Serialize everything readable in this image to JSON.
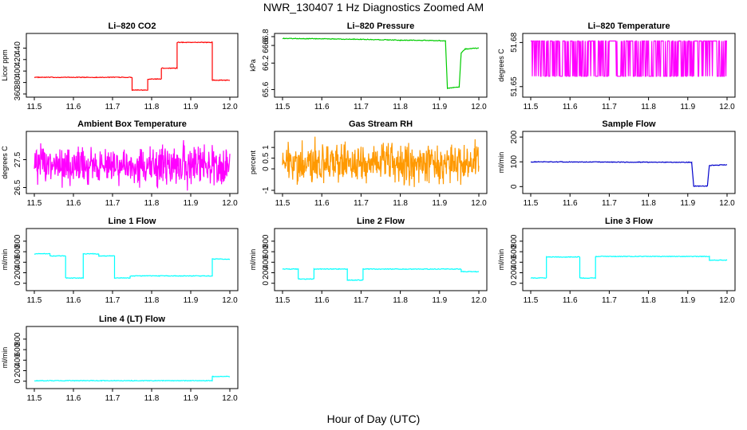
{
  "figure": {
    "title": "NWR_130407  1 Hz Diagnostics Zoomed AM",
    "xlabel": "Hour of Day (UTC)"
  },
  "chart_data": [
    {
      "type": "line",
      "title": "Li–820 CO2",
      "ylabel": "Licor ppm",
      "color": "#ff0000",
      "xlim": [
        11.5,
        12.0
      ],
      "ylim": [
        360,
        460
      ],
      "xticks": [
        "11.5",
        "11.6",
        "11.7",
        "11.8",
        "11.9",
        "12.0"
      ],
      "yticks": [
        360,
        380,
        400,
        420,
        440
      ],
      "series": [
        {
          "x": [
            11.5,
            11.75,
            11.75,
            11.79,
            11.79,
            11.825,
            11.825,
            11.865,
            11.865,
            11.955,
            11.955,
            12.0
          ],
          "y": [
            389,
            389,
            367,
            367,
            386,
            386,
            405,
            405,
            450,
            450,
            384,
            384
          ]
        }
      ]
    },
    {
      "type": "line",
      "title": "Li–820 Pressure",
      "ylabel": "kPa",
      "color": "#00cc00",
      "xlim": [
        11.5,
        12.0
      ],
      "ylim": [
        65.5,
        66.8
      ],
      "xticks": [
        "11.5",
        "11.6",
        "11.7",
        "11.8",
        "11.9",
        "12.0"
      ],
      "yticks": [
        65.6,
        66.2,
        66.6,
        66.8
      ],
      "series": [
        {
          "x": [
            11.5,
            11.6,
            11.7,
            11.8,
            11.9,
            11.915,
            11.92,
            11.95,
            11.955,
            11.965,
            12.0
          ],
          "y": [
            66.76,
            66.75,
            66.74,
            66.72,
            66.71,
            66.7,
            65.63,
            65.66,
            66.43,
            66.52,
            66.54
          ]
        }
      ]
    },
    {
      "type": "line",
      "title": "Li–820 Temperature",
      "ylabel": "degrees C",
      "color": "#ff00ff",
      "xlim": [
        11.5,
        12.0
      ],
      "ylim": [
        51.645,
        51.684
      ],
      "xticks": [
        "11.5",
        "11.6",
        "11.7",
        "11.8",
        "11.9",
        "12.0"
      ],
      "yticks": [
        51.65,
        51.68
      ],
      "series": [
        {
          "x": [
            11.5,
            12.0
          ],
          "y": [
            51.657,
            51.681
          ]
        }
      ]
    },
    {
      "type": "line",
      "title": "Ambient Box Temperature",
      "ylabel": "degrees C",
      "color": "#ff00ff",
      "xlim": [
        11.5,
        12.0
      ],
      "ylim": [
        26.4,
        28.4
      ],
      "xticks": [
        "11.5",
        "11.6",
        "11.7",
        "11.8",
        "11.9",
        "12.0"
      ],
      "yticks": [
        26.5,
        27.5
      ],
      "series": [
        {
          "x": [
            11.5,
            12.0
          ],
          "y": [
            27.3,
            27.3
          ]
        }
      ]
    },
    {
      "type": "line",
      "title": "Gas Stream RH",
      "ylabel": "percent",
      "color": "#ff9900",
      "xlim": [
        11.5,
        12.0
      ],
      "ylim": [
        -1.0,
        1.6
      ],
      "xticks": [
        "11.5",
        "11.6",
        "11.7",
        "11.8",
        "11.9",
        "12.0"
      ],
      "yticks": [
        -1.0,
        0.0,
        0.5,
        1.0
      ],
      "series": [
        {
          "x": [
            11.5,
            12.0
          ],
          "y": [
            0.3,
            0.3
          ]
        }
      ]
    },
    {
      "type": "line",
      "title": "Sample Flow",
      "ylabel": "ml/min",
      "color": "#0000cc",
      "xlim": [
        11.5,
        12.0
      ],
      "ylim": [
        -15,
        210
      ],
      "xticks": [
        "11.5",
        "11.6",
        "11.7",
        "11.8",
        "11.9",
        "12.0"
      ],
      "yticks": [
        0,
        100,
        200
      ],
      "series": [
        {
          "x": [
            11.5,
            11.91,
            11.915,
            11.95,
            11.955,
            12.0
          ],
          "y": [
            100,
            98,
            2,
            2,
            86,
            88
          ]
        }
      ]
    },
    {
      "type": "line",
      "title": "Line 1 Flow",
      "ylabel": "ml/min",
      "color": "#00ffff",
      "xlim": [
        11.5,
        12.0
      ],
      "ylim": [
        -80,
        980
      ],
      "xticks": [
        "11.5",
        "11.6",
        "11.7",
        "11.8",
        "11.9",
        "12.0"
      ],
      "yticks": [
        0,
        200,
        400,
        600,
        800
      ],
      "series": [
        {
          "x": [
            11.5,
            11.54,
            11.54,
            11.58,
            11.58,
            11.625,
            11.625,
            11.665,
            11.665,
            11.705,
            11.705,
            11.745,
            11.745,
            11.955,
            11.955,
            12.0
          ],
          "y": [
            560,
            560,
            520,
            520,
            100,
            100,
            560,
            560,
            520,
            520,
            100,
            100,
            140,
            140,
            460,
            460
          ]
        }
      ]
    },
    {
      "type": "line",
      "title": "Line 2 Flow",
      "ylabel": "ml/min",
      "color": "#00ffff",
      "xlim": [
        11.5,
        12.0
      ],
      "ylim": [
        -80,
        980
      ],
      "xticks": [
        "11.5",
        "11.6",
        "11.7",
        "11.8",
        "11.9",
        "12.0"
      ],
      "yticks": [
        0,
        200,
        400,
        600,
        800
      ],
      "series": [
        {
          "x": [
            11.5,
            11.54,
            11.54,
            11.58,
            11.58,
            11.665,
            11.665,
            11.705,
            11.705,
            11.955,
            11.955,
            12.0
          ],
          "y": [
            270,
            270,
            80,
            80,
            270,
            270,
            60,
            60,
            270,
            270,
            220,
            220
          ]
        }
      ]
    },
    {
      "type": "line",
      "title": "Line 3 Flow",
      "ylabel": "ml/min",
      "color": "#00ffff",
      "xlim": [
        11.5,
        12.0
      ],
      "ylim": [
        -80,
        980
      ],
      "xticks": [
        "11.5",
        "11.6",
        "11.7",
        "11.8",
        "11.9",
        "12.0"
      ],
      "yticks": [
        0,
        200,
        400,
        600,
        800
      ],
      "series": [
        {
          "x": [
            11.5,
            11.54,
            11.54,
            11.625,
            11.625,
            11.665,
            11.665,
            11.955,
            11.955,
            12.0
          ],
          "y": [
            100,
            100,
            500,
            500,
            100,
            100,
            510,
            510,
            440,
            440
          ]
        }
      ]
    },
    {
      "type": "line",
      "title": "Line 4 (LT) Flow",
      "ylabel": "ml/min",
      "color": "#00ffff",
      "xlim": [
        11.5,
        12.0
      ],
      "ylim": [
        -80,
        980
      ],
      "xticks": [
        "11.5",
        "11.6",
        "11.7",
        "11.8",
        "11.9",
        "12.0"
      ],
      "yticks": [
        0,
        200,
        400,
        600,
        800
      ],
      "series": [
        {
          "x": [
            11.5,
            11.955,
            11.955,
            12.0
          ],
          "y": [
            10,
            10,
            90,
            90
          ]
        }
      ]
    }
  ]
}
